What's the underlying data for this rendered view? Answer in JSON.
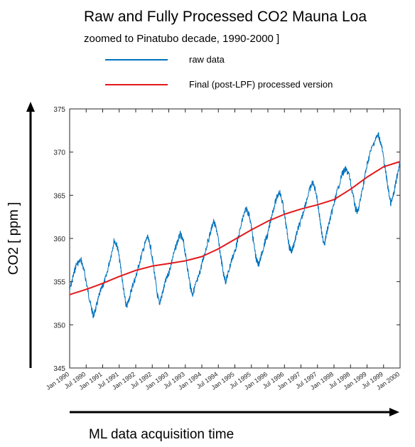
{
  "chart_data": {
    "type": "line",
    "title": "Raw and Fully Processed CO2 Mauna Loa",
    "subtitle": "zoomed to Pinatubo decade, 1990-2000 ]",
    "ylabel": "CO2 [ ppm ]",
    "xlabel": "ML data acquisition time",
    "ylim": [
      345,
      375
    ],
    "xlim": [
      1990.0,
      2000.0
    ],
    "yticks": [
      345,
      350,
      355,
      360,
      365,
      370,
      375
    ],
    "xticks": [
      "Jan 1990",
      "Jul 1990",
      "Jan 1991",
      "Jul 1991",
      "Jan 1992",
      "Jul 1992",
      "Jan 1993",
      "Jul 1993",
      "Jan 1994",
      "Jul 1994",
      "Jan 1995",
      "Jul 1995",
      "Jan 1996",
      "Jul 1996",
      "Jan 1997",
      "Jul 1997",
      "Jan 1998",
      "Jul 1998",
      "Jan 1999",
      "Jul 1999",
      "Jan 2000"
    ],
    "grid": false,
    "legend_position": "top",
    "series": [
      {
        "name": "raw data",
        "color": "#0072BD",
        "x": [
          1990.0,
          1990.1,
          1990.2,
          1990.35,
          1990.45,
          1990.55,
          1990.65,
          1990.72,
          1990.8,
          1990.9,
          1991.0,
          1991.1,
          1991.25,
          1991.35,
          1991.45,
          1991.55,
          1991.65,
          1991.72,
          1991.8,
          1991.9,
          1992.0,
          1992.1,
          1992.25,
          1992.35,
          1992.45,
          1992.55,
          1992.65,
          1992.72,
          1992.8,
          1992.9,
          1993.0,
          1993.1,
          1993.25,
          1993.35,
          1993.45,
          1993.55,
          1993.65,
          1993.72,
          1993.8,
          1993.9,
          1994.0,
          1994.1,
          1994.25,
          1994.35,
          1994.45,
          1994.55,
          1994.65,
          1994.72,
          1994.8,
          1994.9,
          1995.0,
          1995.1,
          1995.25,
          1995.35,
          1995.45,
          1995.55,
          1995.65,
          1995.72,
          1995.8,
          1995.9,
          1996.0,
          1996.1,
          1996.25,
          1996.35,
          1996.45,
          1996.55,
          1996.65,
          1996.72,
          1996.8,
          1996.9,
          1997.0,
          1997.1,
          1997.25,
          1997.35,
          1997.45,
          1997.55,
          1997.65,
          1997.72,
          1997.8,
          1997.9,
          1998.0,
          1998.1,
          1998.25,
          1998.35,
          1998.45,
          1998.55,
          1998.65,
          1998.72,
          1998.8,
          1998.9,
          1999.0,
          1999.1,
          1999.25,
          1999.35,
          1999.45,
          1999.55,
          1999.65,
          1999.72,
          1999.8,
          1999.9,
          2000.0
        ],
        "y": [
          354.0,
          355.5,
          357.0,
          357.5,
          356.0,
          354.0,
          352.0,
          351.0,
          352.0,
          353.5,
          354.5,
          355.5,
          358.0,
          359.8,
          359.0,
          356.5,
          353.5,
          352.0,
          353.0,
          354.5,
          355.5,
          357.0,
          359.0,
          360.2,
          359.0,
          356.5,
          353.5,
          352.5,
          353.5,
          355.0,
          356.0,
          357.5,
          359.5,
          360.5,
          359.5,
          357.0,
          354.5,
          353.5,
          354.5,
          355.5,
          357.0,
          358.5,
          360.5,
          362.0,
          361.0,
          358.5,
          356.0,
          355.0,
          356.0,
          357.5,
          358.5,
          360.0,
          362.5,
          363.5,
          362.5,
          360.0,
          357.5,
          357.0,
          358.0,
          359.5,
          360.5,
          362.5,
          364.5,
          365.5,
          364.0,
          361.5,
          359.0,
          358.5,
          359.5,
          361.0,
          362.0,
          363.5,
          365.5,
          366.5,
          365.5,
          363.0,
          360.0,
          359.5,
          361.0,
          362.5,
          364.0,
          365.5,
          367.5,
          368.0,
          367.5,
          365.5,
          363.5,
          363.0,
          364.5,
          366.5,
          368.5,
          370.0,
          371.5,
          372.0,
          370.5,
          368.0,
          365.5,
          364.0,
          365.0,
          367.0,
          369.0
        ]
      },
      {
        "name": "Final (post-LPF) processed version",
        "color": "#E3191C",
        "x": [
          1990.0,
          1990.5,
          1991.0,
          1991.5,
          1992.0,
          1992.5,
          1993.0,
          1993.5,
          1994.0,
          1994.5,
          1995.0,
          1995.5,
          1996.0,
          1996.5,
          1997.0,
          1997.5,
          1998.0,
          1998.5,
          1999.0,
          1999.5,
          2000.0
        ],
        "y": [
          353.5,
          354.1,
          354.8,
          355.6,
          356.3,
          356.8,
          357.1,
          357.4,
          357.9,
          358.8,
          359.9,
          361.0,
          362.0,
          362.8,
          363.4,
          363.9,
          364.5,
          365.7,
          367.1,
          368.3,
          368.9
        ]
      }
    ]
  }
}
